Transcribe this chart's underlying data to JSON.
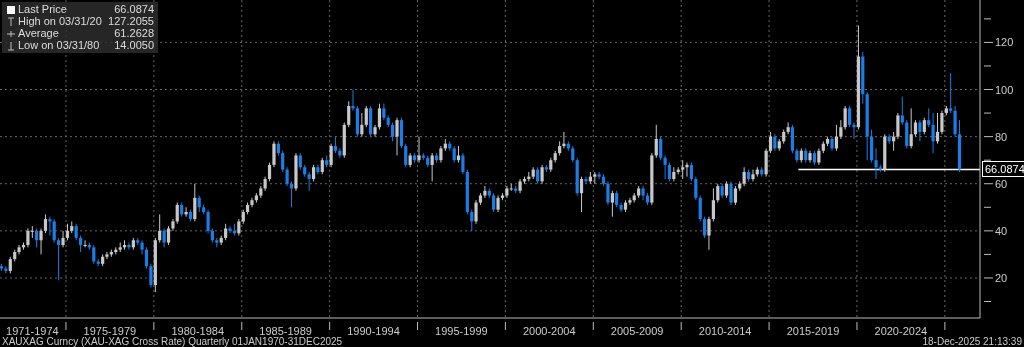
{
  "chart_data": {
    "type": "candlestick",
    "x": [
      "1971-05",
      "1971-08",
      "1971-11",
      "1972-02",
      "1972-05",
      "1972-08",
      "1972-11",
      "1973-02",
      "1973-05",
      "1973-08",
      "1973-11",
      "1974-02",
      "1974-05",
      "1974-08",
      "1974-11",
      "1975-02",
      "1975-05",
      "1975-08",
      "1975-11",
      "1976-02",
      "1976-05",
      "1976-08",
      "1976-11",
      "1977-02",
      "1977-05",
      "1977-08",
      "1977-11",
      "1978-02",
      "1978-05",
      "1978-08",
      "1978-11",
      "1979-02",
      "1979-05",
      "1979-08",
      "1979-11",
      "1980-02",
      "1980-05",
      "1980-08",
      "1980-11",
      "1981-02",
      "1981-05",
      "1981-08",
      "1981-11",
      "1982-02",
      "1982-05",
      "1982-08",
      "1982-11",
      "1983-02",
      "1983-05",
      "1983-08",
      "1983-11",
      "1984-02",
      "1984-05",
      "1984-08",
      "1984-11",
      "1985-02",
      "1985-05",
      "1985-08",
      "1985-11",
      "1986-02",
      "1986-05",
      "1986-08",
      "1986-11",
      "1987-02",
      "1987-05",
      "1987-08",
      "1987-11",
      "1988-02",
      "1988-05",
      "1988-08",
      "1988-11",
      "1989-02",
      "1989-05",
      "1989-08",
      "1989-11",
      "1990-02",
      "1990-05",
      "1990-08",
      "1990-11",
      "1991-02",
      "1991-05",
      "1991-08",
      "1991-11",
      "1992-02",
      "1992-05",
      "1992-08",
      "1992-11",
      "1993-02",
      "1993-05",
      "1993-08",
      "1993-11",
      "1994-02",
      "1994-05",
      "1994-08",
      "1994-11",
      "1995-02",
      "1995-05",
      "1995-08",
      "1995-11",
      "1996-02",
      "1996-05",
      "1996-08",
      "1996-11",
      "1997-02",
      "1997-05",
      "1997-08",
      "1997-11",
      "1998-02",
      "1998-05",
      "1998-08",
      "1998-11",
      "1999-02",
      "1999-05",
      "1999-08",
      "1999-11",
      "2000-02",
      "2000-05",
      "2000-08",
      "2000-11",
      "2001-02",
      "2001-05",
      "2001-08",
      "2001-11",
      "2002-02",
      "2002-05",
      "2002-08",
      "2002-11",
      "2003-02",
      "2003-05",
      "2003-08",
      "2003-11",
      "2004-02",
      "2004-05",
      "2004-08",
      "2004-11",
      "2005-02",
      "2005-05",
      "2005-08",
      "2005-11",
      "2006-02",
      "2006-05",
      "2006-08",
      "2006-11",
      "2007-02",
      "2007-05",
      "2007-08",
      "2007-11",
      "2008-02",
      "2008-05",
      "2008-08",
      "2008-11",
      "2009-02",
      "2009-05",
      "2009-08",
      "2009-11",
      "2010-02",
      "2010-05",
      "2010-08",
      "2010-11",
      "2011-02",
      "2011-05",
      "2011-08",
      "2011-11",
      "2012-02",
      "2012-05",
      "2012-08",
      "2012-11",
      "2013-02",
      "2013-05",
      "2013-08",
      "2013-11",
      "2014-02",
      "2014-05",
      "2014-08",
      "2014-11",
      "2015-02",
      "2015-05",
      "2015-08",
      "2015-11",
      "2016-02",
      "2016-05",
      "2016-08",
      "2016-11",
      "2017-02",
      "2017-05",
      "2017-08",
      "2017-11",
      "2018-02",
      "2018-05",
      "2018-08",
      "2018-11",
      "2019-02",
      "2019-05",
      "2019-08",
      "2019-11",
      "2020-02",
      "2020-05",
      "2020-08",
      "2020-11",
      "2021-02",
      "2021-05",
      "2021-08",
      "2021-11",
      "2022-02",
      "2022-05",
      "2022-08",
      "2022-11",
      "2023-02",
      "2023-05",
      "2023-08",
      "2023-11",
      "2024-02",
      "2024-05",
      "2024-08",
      "2024-11",
      "2025-02",
      "2025-05",
      "2025-08",
      "2025-11"
    ],
    "ohlc": [
      [
        25,
        26,
        23,
        24
      ],
      [
        24,
        25,
        22,
        23
      ],
      [
        23,
        29,
        22,
        28
      ],
      [
        28,
        32,
        27,
        31
      ],
      [
        31,
        34,
        30,
        33
      ],
      [
        33,
        35,
        32,
        34
      ],
      [
        34,
        41,
        33,
        40
      ],
      [
        40,
        42,
        37,
        40
      ],
      [
        40,
        41,
        33,
        36
      ],
      [
        36,
        41,
        30,
        40
      ],
      [
        40,
        47,
        39,
        45
      ],
      [
        45,
        46,
        38,
        44
      ],
      [
        44,
        45,
        35,
        36
      ],
      [
        36,
        37,
        19,
        34
      ],
      [
        34,
        40,
        33,
        37
      ],
      [
        37,
        43,
        36,
        40
      ],
      [
        40,
        44,
        39,
        42
      ],
      [
        42,
        43,
        36,
        37
      ],
      [
        37,
        38,
        31,
        34
      ],
      [
        34,
        36,
        33,
        34
      ],
      [
        34,
        35,
        32,
        33
      ],
      [
        33,
        34,
        26,
        27
      ],
      [
        27,
        28,
        25,
        26
      ],
      [
        26,
        30,
        25,
        29
      ],
      [
        29,
        31,
        28,
        30
      ],
      [
        30,
        32,
        29,
        31
      ],
      [
        31,
        33,
        30,
        32
      ],
      [
        32,
        35,
        31,
        33
      ],
      [
        33,
        36,
        32,
        34
      ],
      [
        34,
        35,
        32,
        33
      ],
      [
        33,
        37,
        32,
        36
      ],
      [
        36,
        37,
        34,
        35
      ],
      [
        35,
        36,
        30,
        32
      ],
      [
        32,
        33,
        24,
        25
      ],
      [
        25,
        26,
        16,
        17
      ],
      [
        17,
        37,
        14.005,
        36
      ],
      [
        36,
        47,
        35,
        40
      ],
      [
        40,
        41,
        33,
        35
      ],
      [
        35,
        42,
        34,
        41
      ],
      [
        41,
        45,
        40,
        44
      ],
      [
        44,
        52,
        43,
        51
      ],
      [
        51,
        52,
        46,
        47
      ],
      [
        47,
        50,
        46,
        48
      ],
      [
        48,
        49,
        44,
        45
      ],
      [
        45,
        60,
        44,
        54
      ],
      [
        54,
        55,
        48,
        50
      ],
      [
        50,
        51,
        47,
        48
      ],
      [
        48,
        49,
        39,
        40
      ],
      [
        40,
        41,
        35,
        36
      ],
      [
        36,
        37,
        33,
        35
      ],
      [
        35,
        38,
        34,
        37
      ],
      [
        37,
        43,
        36,
        41
      ],
      [
        41,
        42,
        39,
        40
      ],
      [
        40,
        43,
        38,
        39
      ],
      [
        39,
        45,
        38,
        44
      ],
      [
        44,
        49,
        43,
        48
      ],
      [
        48,
        52,
        47,
        51
      ],
      [
        51,
        54,
        50,
        53
      ],
      [
        53,
        56,
        52,
        55
      ],
      [
        55,
        59,
        54,
        58
      ],
      [
        58,
        63,
        57,
        62
      ],
      [
        62,
        69,
        61,
        68
      ],
      [
        68,
        78,
        67,
        77
      ],
      [
        77,
        78,
        72,
        73
      ],
      [
        73,
        74,
        65,
        66
      ],
      [
        66,
        67,
        59,
        60
      ],
      [
        60,
        61,
        50,
        58
      ],
      [
        58,
        73,
        57,
        72
      ],
      [
        72,
        73,
        66,
        67
      ],
      [
        67,
        68,
        63,
        64
      ],
      [
        64,
        65,
        57,
        62
      ],
      [
        62,
        68,
        61,
        67
      ],
      [
        67,
        68,
        64,
        65
      ],
      [
        65,
        71,
        64,
        70
      ],
      [
        70,
        72,
        67,
        68
      ],
      [
        68,
        77,
        67,
        76
      ],
      [
        76,
        80,
        73,
        74
      ],
      [
        74,
        75,
        71,
        72
      ],
      [
        72,
        86,
        71,
        85
      ],
      [
        85,
        95,
        84,
        93
      ],
      [
        93,
        100,
        91,
        92
      ],
      [
        92,
        93,
        80,
        81
      ],
      [
        81,
        90,
        80,
        85
      ],
      [
        85,
        93,
        84,
        92
      ],
      [
        92,
        93,
        80,
        81
      ],
      [
        81,
        85,
        80,
        84
      ],
      [
        84,
        94,
        83,
        92
      ],
      [
        92,
        94,
        87,
        88
      ],
      [
        88,
        89,
        84,
        85
      ],
      [
        85,
        86,
        78,
        80
      ],
      [
        80,
        88,
        72,
        87
      ],
      [
        87,
        88,
        75,
        76
      ],
      [
        76,
        77,
        67,
        68
      ],
      [
        68,
        73,
        67,
        72
      ],
      [
        72,
        73,
        69,
        70
      ],
      [
        70,
        80,
        69,
        72
      ],
      [
        72,
        73,
        70,
        71
      ],
      [
        71,
        72,
        67,
        68
      ],
      [
        68,
        73,
        61,
        72
      ],
      [
        72,
        73,
        69,
        70
      ],
      [
        70,
        76,
        69,
        75
      ],
      [
        75,
        79,
        74,
        77
      ],
      [
        77,
        78,
        74,
        75
      ],
      [
        75,
        76,
        69,
        70
      ],
      [
        70,
        76,
        69,
        72
      ],
      [
        72,
        73,
        64,
        65
      ],
      [
        65,
        66,
        47,
        48
      ],
      [
        48,
        49,
        40,
        44
      ],
      [
        44,
        53,
        43,
        52
      ],
      [
        52,
        56,
        51,
        55
      ],
      [
        55,
        59,
        54,
        57
      ],
      [
        57,
        58,
        54,
        55
      ],
      [
        55,
        56,
        48,
        49
      ],
      [
        49,
        55,
        48,
        54
      ],
      [
        54,
        56,
        53,
        55
      ],
      [
        55,
        59,
        54,
        58
      ],
      [
        58,
        60,
        57,
        58
      ],
      [
        58,
        59,
        56,
        57
      ],
      [
        57,
        62,
        56,
        61
      ],
      [
        61,
        63,
        60,
        62
      ],
      [
        62,
        65,
        61,
        63
      ],
      [
        63,
        67,
        62,
        66
      ],
      [
        66,
        67,
        60,
        61
      ],
      [
        61,
        68,
        60,
        67
      ],
      [
        67,
        68,
        65,
        66
      ],
      [
        66,
        71,
        65,
        70
      ],
      [
        70,
        74,
        69,
        73
      ],
      [
        73,
        78,
        72,
        76
      ],
      [
        76,
        82,
        75,
        77
      ],
      [
        77,
        78,
        74,
        75
      ],
      [
        75,
        76,
        69,
        70
      ],
      [
        70,
        71,
        55,
        56
      ],
      [
        56,
        63,
        48,
        62
      ],
      [
        62,
        63,
        60,
        61
      ],
      [
        61,
        65,
        60,
        63
      ],
      [
        63,
        65,
        60,
        64
      ],
      [
        64,
        65,
        62,
        63
      ],
      [
        63,
        64,
        59,
        60
      ],
      [
        60,
        61,
        51,
        52
      ],
      [
        52,
        57,
        46,
        56
      ],
      [
        56,
        57,
        50,
        51
      ],
      [
        51,
        52,
        48,
        49
      ],
      [
        49,
        53,
        48,
        52
      ],
      [
        52,
        54,
        51,
        53
      ],
      [
        53,
        56,
        52,
        55
      ],
      [
        55,
        59,
        54,
        58
      ],
      [
        58,
        59,
        53,
        55
      ],
      [
        55,
        56,
        51,
        52
      ],
      [
        52,
        73,
        51,
        72
      ],
      [
        72,
        85,
        71,
        79
      ],
      [
        79,
        80,
        70,
        71
      ],
      [
        71,
        72,
        62,
        68
      ],
      [
        68,
        69,
        61,
        62
      ],
      [
        62,
        67,
        61,
        65
      ],
      [
        65,
        67,
        64,
        66
      ],
      [
        66,
        70,
        62,
        67
      ],
      [
        67,
        69,
        63,
        68
      ],
      [
        68,
        69,
        61,
        62
      ],
      [
        62,
        63,
        53,
        54
      ],
      [
        54,
        55,
        44,
        45
      ],
      [
        45,
        46,
        37,
        38
      ],
      [
        38,
        46,
        32,
        45
      ],
      [
        45,
        58,
        44,
        53
      ],
      [
        53,
        60,
        52,
        59
      ],
      [
        59,
        60,
        54,
        55
      ],
      [
        55,
        61,
        54,
        60
      ],
      [
        60,
        61,
        51,
        52
      ],
      [
        52,
        59,
        51,
        58
      ],
      [
        58,
        61,
        57,
        60
      ],
      [
        60,
        67,
        59,
        65
      ],
      [
        65,
        66,
        61,
        62
      ],
      [
        62,
        66,
        61,
        64
      ],
      [
        64,
        67,
        63,
        66
      ],
      [
        66,
        67,
        63,
        64
      ],
      [
        64,
        75,
        63,
        74
      ],
      [
        74,
        82,
        73,
        80
      ],
      [
        80,
        81,
        74,
        75
      ],
      [
        75,
        79,
        74,
        78
      ],
      [
        78,
        83,
        77,
        82
      ],
      [
        82,
        86,
        81,
        84
      ],
      [
        84,
        85,
        73,
        74
      ],
      [
        74,
        75,
        69,
        70
      ],
      [
        70,
        75,
        69,
        74
      ],
      [
        74,
        75,
        69,
        70
      ],
      [
        70,
        74,
        69,
        73
      ],
      [
        73,
        74,
        68,
        69
      ],
      [
        69,
        75,
        68,
        74
      ],
      [
        74,
        78,
        73,
        77
      ],
      [
        77,
        80,
        76,
        79
      ],
      [
        79,
        80,
        74,
        75
      ],
      [
        75,
        85,
        74,
        80
      ],
      [
        80,
        87,
        79,
        84
      ],
      [
        84,
        93,
        83,
        92
      ],
      [
        92,
        93,
        84,
        85
      ],
      [
        85,
        86,
        79,
        84
      ],
      [
        84,
        127.2055,
        83,
        114
      ],
      [
        114,
        116,
        94,
        98
      ],
      [
        98,
        99,
        70,
        80
      ],
      [
        80,
        83,
        69,
        70
      ],
      [
        70,
        75,
        62,
        67
      ],
      [
        67,
        68,
        65,
        66
      ],
      [
        66,
        81,
        65,
        80
      ],
      [
        80,
        81,
        77,
        78
      ],
      [
        78,
        82,
        74,
        80
      ],
      [
        80,
        90,
        79,
        89
      ],
      [
        89,
        97,
        85,
        86
      ],
      [
        86,
        87,
        75,
        76
      ],
      [
        76,
        92,
        75,
        81
      ],
      [
        81,
        87,
        80,
        86
      ],
      [
        86,
        87,
        78,
        82
      ],
      [
        82,
        88,
        81,
        87
      ],
      [
        87,
        92,
        84,
        85
      ],
      [
        85,
        90,
        73,
        78
      ],
      [
        78,
        90,
        77,
        82
      ],
      [
        82,
        91,
        81,
        90
      ],
      [
        90,
        93,
        89,
        92
      ],
      [
        92,
        107,
        90,
        91
      ],
      [
        91,
        93,
        80,
        81
      ],
      [
        81,
        87,
        65,
        66.0874
      ]
    ],
    "colors": [
      "#1a7ee6",
      "#1a7ee6",
      "#c8c8c8",
      "#c8c8c8",
      "#c8c8c8",
      "#c8c8c8",
      "#c8c8c8",
      "#c8c8c8",
      "#1a7ee6",
      "#c8c8c8",
      "#c8c8c8",
      "#1a7ee6",
      "#1a7ee6",
      "#1a7ee6",
      "#c8c8c8",
      "#c8c8c8",
      "#c8c8c8",
      "#1a7ee6",
      "#1a7ee6",
      "#c8c8c8",
      "#1a7ee6",
      "#1a7ee6",
      "#1a7ee6",
      "#c8c8c8",
      "#c8c8c8",
      "#c8c8c8",
      "#c8c8c8",
      "#c8c8c8",
      "#c8c8c8",
      "#1a7ee6",
      "#c8c8c8",
      "#1a7ee6",
      "#1a7ee6",
      "#1a7ee6",
      "#1a7ee6",
      "#c8c8c8",
      "#c8c8c8",
      "#1a7ee6",
      "#c8c8c8",
      "#c8c8c8",
      "#c8c8c8",
      "#1a7ee6",
      "#c8c8c8",
      "#1a7ee6",
      "#c8c8c8",
      "#1a7ee6",
      "#1a7ee6",
      "#1a7ee6",
      "#1a7ee6",
      "#1a7ee6",
      "#c8c8c8",
      "#c8c8c8",
      "#1a7ee6",
      "#1a7ee6",
      "#c8c8c8",
      "#c8c8c8",
      "#c8c8c8",
      "#c8c8c8",
      "#c8c8c8",
      "#c8c8c8",
      "#c8c8c8",
      "#c8c8c8",
      "#c8c8c8",
      "#1a7ee6",
      "#1a7ee6",
      "#1a7ee6",
      "#1a7ee6",
      "#c8c8c8",
      "#1a7ee6",
      "#1a7ee6",
      "#1a7ee6",
      "#c8c8c8",
      "#1a7ee6",
      "#c8c8c8",
      "#1a7ee6",
      "#c8c8c8",
      "#1a7ee6",
      "#1a7ee6",
      "#c8c8c8",
      "#c8c8c8",
      "#1a7ee6",
      "#1a7ee6",
      "#c8c8c8",
      "#c8c8c8",
      "#1a7ee6",
      "#c8c8c8",
      "#c8c8c8",
      "#1a7ee6",
      "#1a7ee6",
      "#1a7ee6",
      "#c8c8c8",
      "#1a7ee6",
      "#1a7ee6",
      "#c8c8c8",
      "#1a7ee6",
      "#c8c8c8",
      "#1a7ee6",
      "#1a7ee6",
      "#c8c8c8",
      "#1a7ee6",
      "#c8c8c8",
      "#c8c8c8",
      "#1a7ee6",
      "#1a7ee6",
      "#c8c8c8",
      "#1a7ee6",
      "#1a7ee6",
      "#1a7ee6",
      "#c8c8c8",
      "#c8c8c8",
      "#c8c8c8",
      "#1a7ee6",
      "#1a7ee6",
      "#c8c8c8",
      "#c8c8c8",
      "#c8c8c8",
      "#c8c8c8",
      "#1a7ee6",
      "#c8c8c8",
      "#c8c8c8",
      "#c8c8c8",
      "#c8c8c8",
      "#1a7ee6",
      "#c8c8c8",
      "#1a7ee6",
      "#c8c8c8",
      "#c8c8c8",
      "#c8c8c8",
      "#c8c8c8",
      "#1a7ee6",
      "#1a7ee6",
      "#1a7ee6",
      "#c8c8c8",
      "#1a7ee6",
      "#c8c8c8",
      "#c8c8c8",
      "#1a7ee6",
      "#1a7ee6",
      "#1a7ee6",
      "#c8c8c8",
      "#1a7ee6",
      "#1a7ee6",
      "#c8c8c8",
      "#c8c8c8",
      "#c8c8c8",
      "#c8c8c8",
      "#1a7ee6",
      "#1a7ee6",
      "#c8c8c8",
      "#c8c8c8",
      "#1a7ee6",
      "#1a7ee6",
      "#1a7ee6",
      "#c8c8c8",
      "#c8c8c8",
      "#c8c8c8",
      "#c8c8c8",
      "#1a7ee6",
      "#1a7ee6",
      "#1a7ee6",
      "#1a7ee6",
      "#c8c8c8",
      "#c8c8c8",
      "#c8c8c8",
      "#1a7ee6",
      "#c8c8c8",
      "#1a7ee6",
      "#c8c8c8",
      "#c8c8c8",
      "#c8c8c8",
      "#1a7ee6",
      "#c8c8c8",
      "#c8c8c8",
      "#1a7ee6",
      "#c8c8c8",
      "#c8c8c8",
      "#1a7ee6",
      "#c8c8c8",
      "#c8c8c8",
      "#c8c8c8",
      "#1a7ee6",
      "#1a7ee6",
      "#c8c8c8",
      "#1a7ee6",
      "#c8c8c8",
      "#1a7ee6",
      "#c8c8c8",
      "#c8c8c8",
      "#c8c8c8",
      "#1a7ee6",
      "#c8c8c8",
      "#c8c8c8",
      "#c8c8c8",
      "#1a7ee6",
      "#1a7ee6",
      "#c8c8c8",
      "#1a7ee6",
      "#1a7ee6",
      "#1a7ee6",
      "#1a7ee6",
      "#1a7ee6",
      "#c8c8c8",
      "#1a7ee6",
      "#c8c8c8",
      "#c8c8c8",
      "#1a7ee6",
      "#1a7ee6",
      "#c8c8c8",
      "#c8c8c8",
      "#1a7ee6",
      "#c8c8c8",
      "#1a7ee6",
      "#1a7ee6",
      "#c8c8c8",
      "#c8c8c8",
      "#c8c8c8",
      "#1a7ee6",
      "#1a7ee6",
      "#1a7ee6"
    ],
    "series": [
      {
        "type": "line",
        "name": "66.0874",
        "x": [
          "2016-09",
          "2027-01"
        ],
        "values": [
          66.0874,
          66.0874
        ],
        "color": "#ffffff"
      }
    ],
    "xlim": [
      "1971-04",
      "2027-01"
    ],
    "xticks": [
      {
        "value": "1973-02",
        "label": "1971-1974"
      },
      {
        "value": "1975-01",
        "label": null
      },
      {
        "value": "1977-07",
        "label": "1975-1979"
      },
      {
        "value": "1980-01",
        "label": null
      },
      {
        "value": "1982-07",
        "label": "1980-1984"
      },
      {
        "value": "1985-01",
        "label": null
      },
      {
        "value": "1987-07",
        "label": "1985-1989"
      },
      {
        "value": "1990-01",
        "label": null
      },
      {
        "value": "1992-07",
        "label": "1990-1994"
      },
      {
        "value": "1995-01",
        "label": null
      },
      {
        "value": "1997-07",
        "label": "1995-1999"
      },
      {
        "value": "2000-01",
        "label": null
      },
      {
        "value": "2002-07",
        "label": "2000-2004"
      },
      {
        "value": "2005-01",
        "label": null
      },
      {
        "value": "2007-07",
        "label": "2005-2009"
      },
      {
        "value": "2010-01",
        "label": null
      },
      {
        "value": "2012-07",
        "label": "2010-2014"
      },
      {
        "value": "2015-01",
        "label": null
      },
      {
        "value": "2017-07",
        "label": "2015-2019"
      },
      {
        "value": "2020-01",
        "label": null
      },
      {
        "value": "2022-07",
        "label": "2020-2024"
      },
      {
        "value": "2025-01",
        "label": null
      }
    ],
    "ylim": [
      3,
      138
    ],
    "yticks": [
      {
        "value": 10,
        "label": null
      },
      20,
      {
        "value": 30,
        "label": null
      },
      40,
      {
        "value": 50,
        "label": null
      },
      60,
      {
        "value": 70,
        "label": null
      },
      80,
      {
        "value": 90,
        "label": null
      },
      100,
      {
        "value": 110,
        "label": null
      },
      120,
      {
        "value": 130,
        "label": null
      }
    ],
    "grid": true,
    "annotations": [
      "Last Price",
      "66.0874",
      "High on 03/31/20",
      "127.2055",
      "Average",
      "61.2628",
      "Low on 03/31/80",
      "14.0050",
      "XAUXAG Curncy (XAU-XAG Cross Rate) Quarterly 01JAN1970-31DEC2025",
      "18-Dec-2025 21:13:39"
    ]
  }
}
